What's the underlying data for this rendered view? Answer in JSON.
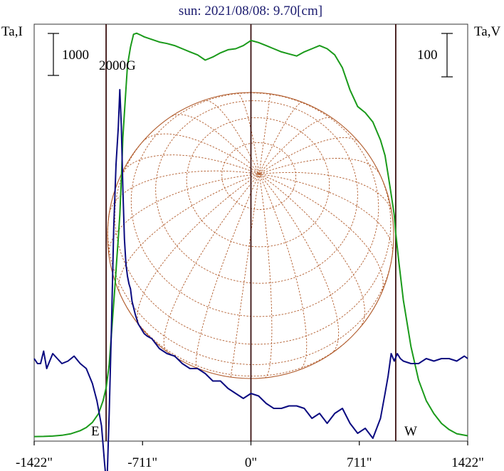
{
  "chart_data": {
    "type": "line",
    "title": "sun: 2021/08/08: 9.70[cm]",
    "ylabel_left": "Ta,I",
    "ylabel_right": "Ta,V",
    "scale_left": "1000",
    "scale_right": "100",
    "field_label": "2000G",
    "limb_labels": {
      "east": "E",
      "west": "W"
    },
    "x_ticks": [
      "-1422\"",
      "-711\"",
      "0\"",
      "711\"",
      "1422\""
    ],
    "x_tick_values": [
      -1422,
      -711,
      0,
      711,
      1422
    ],
    "xlim": [
      -1422,
      1422
    ],
    "limb_markers": [
      -950,
      0,
      950
    ],
    "colors": {
      "stokes_i": "#1a9a1a",
      "stokes_v": "#0a0a80",
      "disk": "#b05a2a",
      "frame": "#333333",
      "marker": "#3a1010"
    },
    "series": [
      {
        "key": "stokes_i",
        "x": [
          -1422,
          -1360,
          -1300,
          -1240,
          -1180,
          -1120,
          -1080,
          -1040,
          -1000,
          -970,
          -950,
          -930,
          -915,
          -900,
          -890,
          -880,
          -870,
          -860,
          -850,
          -840,
          -825,
          -810,
          -790,
          -770,
          -750,
          -720,
          -700,
          -650,
          -600,
          -550,
          -500,
          -450,
          -400,
          -350,
          -300,
          -250,
          -200,
          -150,
          -100,
          -50,
          0,
          50,
          100,
          150,
          200,
          250,
          300,
          350,
          400,
          450,
          500,
          550,
          600,
          650,
          700,
          750,
          800,
          850,
          880,
          900,
          920,
          940,
          950,
          970,
          1000,
          1050,
          1100,
          1150,
          1200,
          1250,
          1300,
          1350,
          1422
        ],
        "y": [
          0.5,
          0.8,
          1.5,
          3,
          6,
          12,
          18,
          28,
          45,
          70,
          95,
          140,
          200,
          260,
          300,
          345,
          385,
          430,
          500,
          580,
          650,
          720,
          755,
          780,
          782,
          778,
          775,
          770,
          765,
          762,
          758,
          752,
          746,
          740,
          730,
          736,
          744,
          750,
          752,
          758,
          768,
          764,
          758,
          752,
          746,
          742,
          738,
          746,
          752,
          758,
          752,
          740,
          715,
          672,
          640,
          628,
          610,
          575,
          545,
          508,
          470,
          430,
          395,
          340,
          265,
          175,
          110,
          70,
          45,
          26,
          14,
          6,
          2
        ]
      },
      {
        "key": "stokes_v",
        "x": [
          -1422,
          -1400,
          -1380,
          -1360,
          -1340,
          -1320,
          -1300,
          -1270,
          -1240,
          -1200,
          -1160,
          -1120,
          -1080,
          -1040,
          -1010,
          -980,
          -960,
          -945,
          -930,
          -915,
          -900,
          -885,
          -870,
          -860,
          -850,
          -840,
          -830,
          -820,
          -810,
          -800,
          -790,
          -780,
          -760,
          -740,
          -720,
          -700,
          -680,
          -650,
          -600,
          -550,
          -500,
          -450,
          -400,
          -350,
          -300,
          -250,
          -200,
          -150,
          -100,
          -50,
          0,
          50,
          100,
          150,
          200,
          250,
          300,
          350,
          400,
          450,
          500,
          550,
          600,
          650,
          700,
          750,
          800,
          850,
          880,
          900,
          920,
          940,
          960,
          980,
          1000,
          1050,
          1100,
          1150,
          1200,
          1250,
          1300,
          1350,
          1400,
          1422
        ],
        "y": [
          2,
          0,
          0,
          5,
          -2,
          1,
          4,
          2,
          0,
          1,
          3,
          0,
          -2,
          -8,
          -15,
          -25,
          -40,
          -50,
          -20,
          15,
          55,
          80,
          95,
          110,
          95,
          70,
          50,
          40,
          35,
          32,
          30,
          25,
          20,
          16,
          14,
          12,
          11,
          10,
          6,
          4,
          3,
          0,
          -2,
          -2,
          -4,
          -7,
          -7,
          -10,
          -12,
          -14,
          -12,
          -13,
          -16,
          -18,
          -18,
          -17,
          -17,
          -18,
          -22,
          -20,
          -24,
          -20,
          -18,
          -24,
          -28,
          -26,
          -30,
          -22,
          -12,
          -5,
          4,
          1,
          4,
          2,
          1,
          0,
          0,
          2,
          1,
          2,
          2,
          1,
          3,
          2
        ]
      }
    ]
  }
}
